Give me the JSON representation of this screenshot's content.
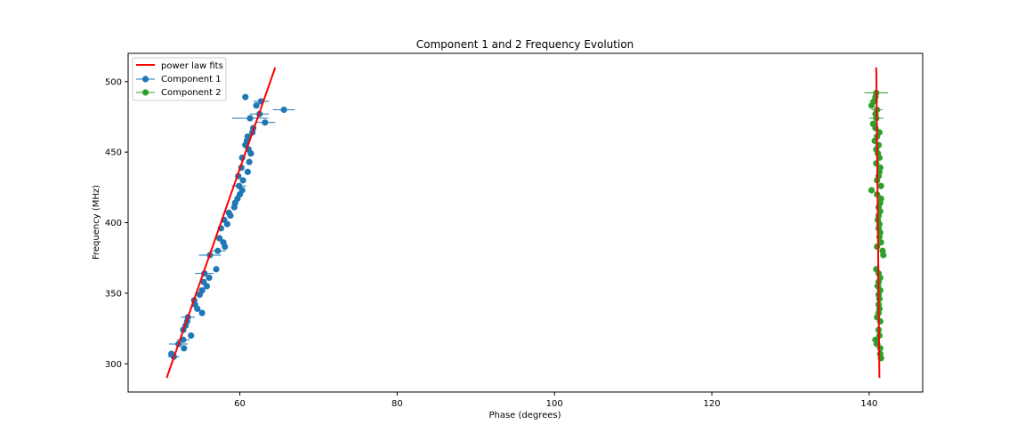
{
  "chart_data": {
    "type": "scatter",
    "title": "Component 1 and 2 Frequency Evolution",
    "xlabel": "Phase (degrees)",
    "ylabel": "Frequency (MHz)",
    "xlim": [
      45.8,
      146.8
    ],
    "ylim": [
      280,
      520
    ],
    "xticks": [
      60,
      80,
      100,
      120,
      140
    ],
    "yticks": [
      300,
      350,
      400,
      450,
      500
    ],
    "grid": false,
    "legend_position": "top-left",
    "legend": [
      "power law fits",
      "Component 1",
      "Component 2"
    ],
    "colors": {
      "fit": "#ff0000",
      "component1": "#1f77b4",
      "component2": "#2ca02c"
    },
    "fits": [
      {
        "name": "power law fits",
        "points": [
          [
            50.7,
            290
          ],
          [
            64.5,
            510
          ]
        ]
      },
      {
        "points": [
          [
            141.3,
            290
          ],
          [
            140.9,
            510
          ]
        ]
      }
    ],
    "series": [
      {
        "name": "Component 1",
        "points": [
          [
            51.3,
            307
          ],
          [
            51.6,
            305
          ],
          [
            52.2,
            314
          ],
          [
            52.8,
            317
          ],
          [
            52.9,
            311
          ],
          [
            52.8,
            324
          ],
          [
            53.1,
            327
          ],
          [
            53.3,
            330
          ],
          [
            53.4,
            333
          ],
          [
            53.8,
            320
          ],
          [
            54.3,
            342
          ],
          [
            54.2,
            345
          ],
          [
            54.6,
            339
          ],
          [
            54.9,
            349
          ],
          [
            55.2,
            352
          ],
          [
            55.4,
            358
          ],
          [
            55.5,
            364
          ],
          [
            55.2,
            336
          ],
          [
            55.8,
            355
          ],
          [
            56.1,
            361
          ],
          [
            56.2,
            377
          ],
          [
            57.0,
            367
          ],
          [
            57.2,
            380
          ],
          [
            57.4,
            389
          ],
          [
            57.6,
            396
          ],
          [
            57.9,
            386
          ],
          [
            58.1,
            383
          ],
          [
            58.0,
            402
          ],
          [
            58.4,
            399
          ],
          [
            58.6,
            407
          ],
          [
            58.8,
            405
          ],
          [
            59.3,
            411
          ],
          [
            59.4,
            414
          ],
          [
            59.7,
            417
          ],
          [
            60.0,
            420
          ],
          [
            59.9,
            426
          ],
          [
            59.8,
            433
          ],
          [
            60.3,
            423
          ],
          [
            60.4,
            430
          ],
          [
            60.2,
            439
          ],
          [
            60.3,
            446
          ],
          [
            61.0,
            436
          ],
          [
            61.2,
            443
          ],
          [
            60.7,
            455
          ],
          [
            61.1,
            452
          ],
          [
            61.4,
            449
          ],
          [
            60.9,
            458
          ],
          [
            61.0,
            461
          ],
          [
            61.6,
            464
          ],
          [
            61.7,
            467
          ],
          [
            61.3,
            474
          ],
          [
            63.2,
            471
          ],
          [
            62.5,
            477
          ],
          [
            62.1,
            483
          ],
          [
            62.7,
            486
          ],
          [
            60.7,
            489
          ],
          [
            65.6,
            480
          ]
        ],
        "xerr": [
          [
            0.7,
            305
          ],
          [
            1.2,
            314
          ],
          [
            0.8,
            317
          ],
          [
            0.9,
            333
          ],
          [
            1.2,
            364
          ],
          [
            1.4,
            377
          ],
          [
            1.0,
            380
          ],
          [
            0.9,
            426
          ],
          [
            2.3,
            474
          ],
          [
            1.3,
            471
          ],
          [
            1.2,
            477
          ],
          [
            1.4,
            480
          ],
          [
            1.0,
            486
          ]
        ]
      },
      {
        "name": "Component 2",
        "points": [
          [
            141.5,
            304
          ],
          [
            141.4,
            307
          ],
          [
            141.4,
            311
          ],
          [
            141.0,
            314
          ],
          [
            140.8,
            317
          ],
          [
            141.3,
            320
          ],
          [
            141.2,
            324
          ],
          [
            141.4,
            330
          ],
          [
            141.0,
            333
          ],
          [
            141.2,
            336
          ],
          [
            141.3,
            339
          ],
          [
            141.2,
            342
          ],
          [
            141.3,
            346
          ],
          [
            141.2,
            349
          ],
          [
            141.4,
            352
          ],
          [
            141.1,
            355
          ],
          [
            141.2,
            358
          ],
          [
            141.4,
            361
          ],
          [
            141.2,
            364
          ],
          [
            140.9,
            367
          ],
          [
            141.8,
            377
          ],
          [
            141.7,
            380
          ],
          [
            141.0,
            383
          ],
          [
            141.5,
            386
          ],
          [
            141.3,
            390
          ],
          [
            141.4,
            393
          ],
          [
            141.2,
            396
          ],
          [
            141.3,
            399
          ],
          [
            141.1,
            402
          ],
          [
            141.2,
            405
          ],
          [
            141.4,
            408
          ],
          [
            141.2,
            411
          ],
          [
            141.4,
            414
          ],
          [
            141.5,
            417
          ],
          [
            141.0,
            420
          ],
          [
            140.3,
            423
          ],
          [
            141.5,
            426
          ],
          [
            141.0,
            430
          ],
          [
            141.2,
            433
          ],
          [
            141.3,
            436
          ],
          [
            141.4,
            439
          ],
          [
            140.9,
            442
          ],
          [
            141.3,
            446
          ],
          [
            141.1,
            449
          ],
          [
            140.9,
            452
          ],
          [
            141.2,
            455
          ],
          [
            140.7,
            458
          ],
          [
            141.0,
            461
          ],
          [
            141.3,
            464
          ],
          [
            140.8,
            467
          ],
          [
            140.5,
            470
          ],
          [
            140.9,
            474
          ],
          [
            140.8,
            477
          ],
          [
            141.0,
            480
          ],
          [
            140.3,
            483
          ],
          [
            140.6,
            486
          ],
          [
            140.8,
            489
          ],
          [
            140.9,
            492
          ]
        ],
        "xerr": [
          [
            0.4,
            304
          ],
          [
            0.5,
            314
          ],
          [
            0.5,
            355
          ],
          [
            0.3,
            386
          ],
          [
            0.4,
            420
          ],
          [
            0.4,
            464
          ],
          [
            0.9,
            474
          ],
          [
            0.7,
            480
          ],
          [
            0.6,
            486
          ],
          [
            1.5,
            492
          ]
        ]
      }
    ]
  }
}
